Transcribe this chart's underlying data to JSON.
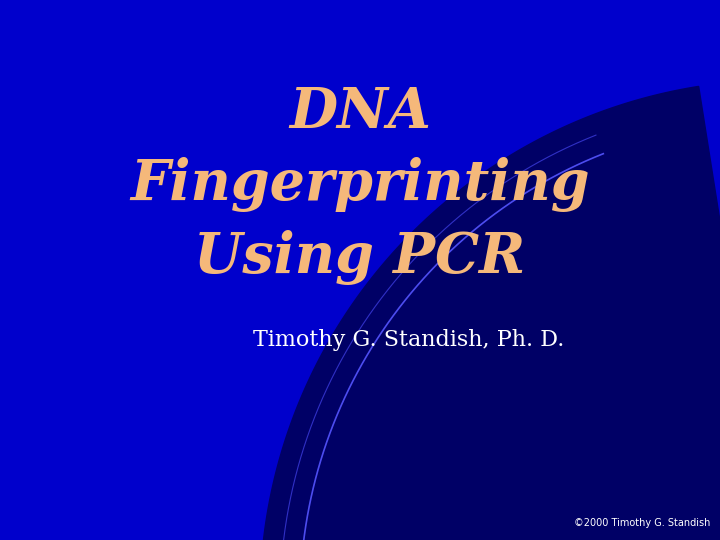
{
  "title_line1": "DNA",
  "title_line2": "Fingerprinting",
  "title_line3": "Using PCR",
  "subtitle": "Timothy G. Standish, Ph. D.",
  "copyright": "©2000 Timothy G. Standish",
  "bg_color": "#0000cc",
  "dark_region_color": "#000066",
  "title_color": "#f5b87a",
  "subtitle_color": "#ffffff",
  "copyright_color": "#ffffff",
  "figsize": [
    7.2,
    5.4
  ],
  "dpi": 100
}
